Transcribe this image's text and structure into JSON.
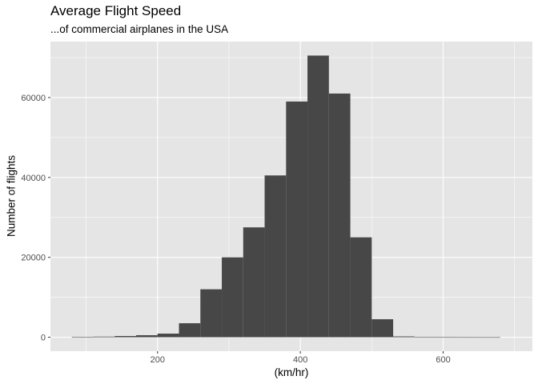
{
  "chart_data": {
    "type": "histogram",
    "title": "Average Flight Speed",
    "subtitle": "...of commercial airplanes in the USA",
    "xlabel": "(km/hr)",
    "ylabel": "Number of flights",
    "xlim": [
      50,
      725
    ],
    "ylim": [
      -3500,
      74000
    ],
    "x_ticks": [
      200,
      400,
      600
    ],
    "x_minor_ticks": [
      100,
      300,
      500,
      700
    ],
    "y_ticks": [
      0,
      20000,
      40000,
      60000
    ],
    "grid": true,
    "background": "#e5e5e5",
    "grid_color": "#ffffff",
    "bar_color": "#474747",
    "bin_width": 30,
    "bins": [
      {
        "x0": 80,
        "x1": 110,
        "value": 50
      },
      {
        "x0": 110,
        "x1": 140,
        "value": 150
      },
      {
        "x0": 140,
        "x1": 170,
        "value": 300
      },
      {
        "x0": 170,
        "x1": 200,
        "value": 500
      },
      {
        "x0": 200,
        "x1": 230,
        "value": 900
      },
      {
        "x0": 230,
        "x1": 260,
        "value": 3500
      },
      {
        "x0": 260,
        "x1": 290,
        "value": 12000
      },
      {
        "x0": 290,
        "x1": 320,
        "value": 20000
      },
      {
        "x0": 320,
        "x1": 350,
        "value": 27500
      },
      {
        "x0": 350,
        "x1": 380,
        "value": 40500
      },
      {
        "x0": 380,
        "x1": 410,
        "value": 59000
      },
      {
        "x0": 410,
        "x1": 440,
        "value": 70500
      },
      {
        "x0": 440,
        "x1": 470,
        "value": 61000
      },
      {
        "x0": 470,
        "x1": 500,
        "value": 25000
      },
      {
        "x0": 500,
        "x1": 530,
        "value": 4500
      },
      {
        "x0": 530,
        "x1": 560,
        "value": 200
      },
      {
        "x0": 560,
        "x1": 590,
        "value": 30
      },
      {
        "x0": 590,
        "x1": 620,
        "value": 20
      },
      {
        "x0": 620,
        "x1": 650,
        "value": 10
      },
      {
        "x0": 650,
        "x1": 680,
        "value": 5
      }
    ]
  }
}
